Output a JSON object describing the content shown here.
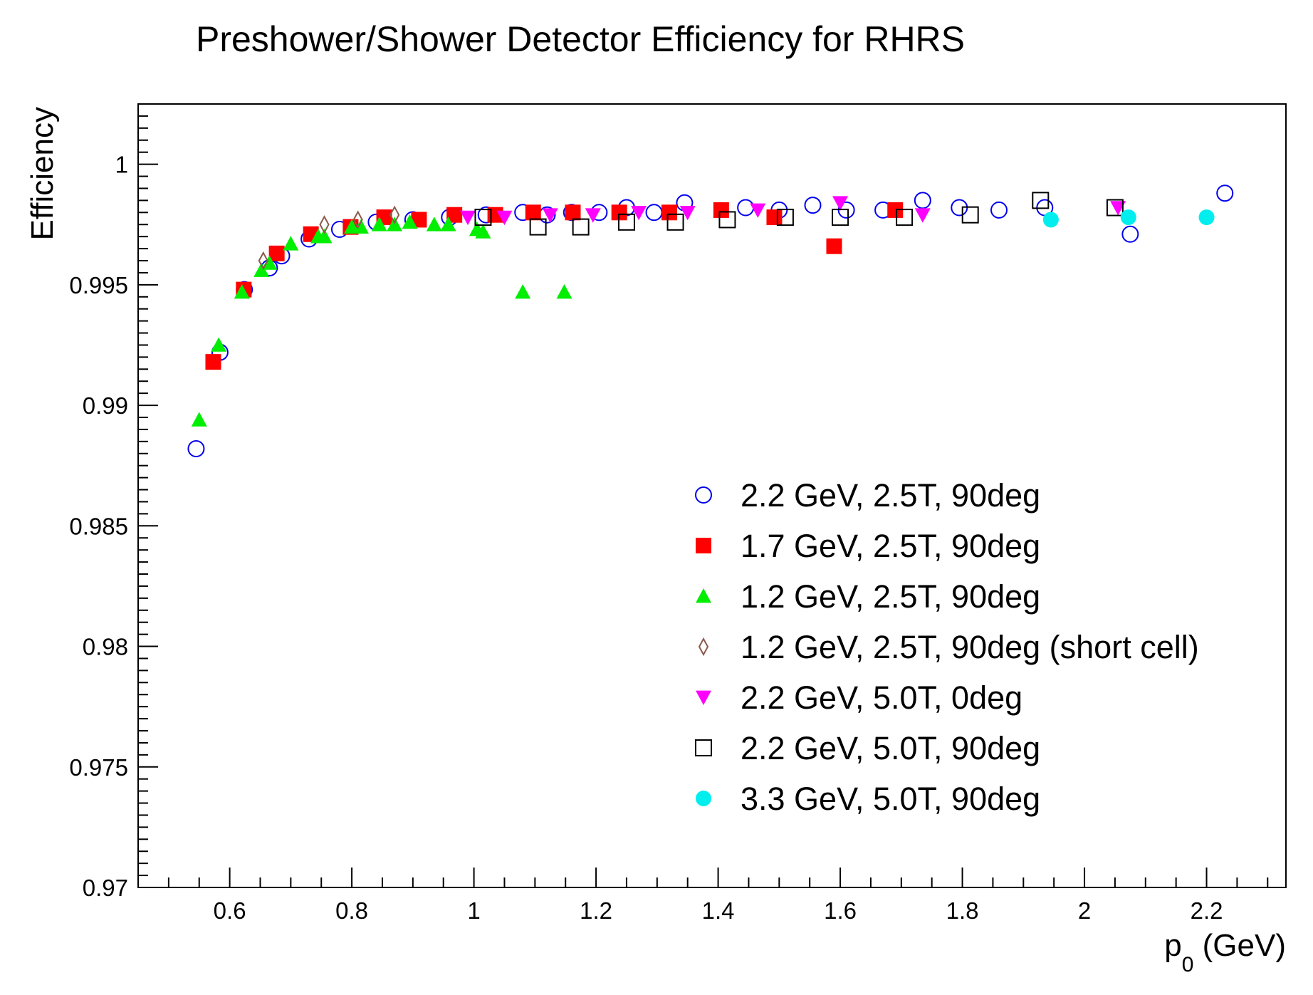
{
  "chart_data": {
    "type": "scatter",
    "title": "Preshower/Shower Detector Efficiency for RHRS",
    "xlabel": {
      "main": "p",
      "sub": "0",
      "unit": " (GeV)"
    },
    "ylabel": "Efficiency",
    "xlim": [
      0.45,
      2.33
    ],
    "ylim": [
      0.97,
      1.0025
    ],
    "x_ticks": [
      {
        "v": 0.6,
        "label": "0.6"
      },
      {
        "v": 0.8,
        "label": "0.8"
      },
      {
        "v": 1.0,
        "label": "1"
      },
      {
        "v": 1.2,
        "label": "1.2"
      },
      {
        "v": 1.4,
        "label": "1.4"
      },
      {
        "v": 1.6,
        "label": "1.6"
      },
      {
        "v": 1.8,
        "label": "1.8"
      },
      {
        "v": 2.0,
        "label": "2"
      },
      {
        "v": 2.2,
        "label": "2.2"
      }
    ],
    "y_ticks": [
      {
        "v": 0.97,
        "label": "0.97"
      },
      {
        "v": 0.975,
        "label": "0.975"
      },
      {
        "v": 0.98,
        "label": "0.98"
      },
      {
        "v": 0.985,
        "label": "0.985"
      },
      {
        "v": 0.99,
        "label": "0.99"
      },
      {
        "v": 0.995,
        "label": "0.995"
      },
      {
        "v": 1.0,
        "label": "1"
      }
    ],
    "legend_position": "bottom-right",
    "series": [
      {
        "name": "2.2 GeV, 2.5T, 90deg",
        "marker": "open-circle",
        "color": "#0000ee",
        "points": [
          [
            0.545,
            0.9882
          ],
          [
            0.584,
            0.9922
          ],
          [
            0.624,
            0.9948
          ],
          [
            0.665,
            0.9957
          ],
          [
            0.685,
            0.9962
          ],
          [
            0.73,
            0.9969
          ],
          [
            0.78,
            0.9973
          ],
          [
            0.84,
            0.9976
          ],
          [
            0.9,
            0.9977
          ],
          [
            0.96,
            0.9978
          ],
          [
            1.02,
            0.9979
          ],
          [
            1.08,
            0.998
          ],
          [
            1.12,
            0.9979
          ],
          [
            1.16,
            0.998
          ],
          [
            1.205,
            0.998
          ],
          [
            1.25,
            0.9982
          ],
          [
            1.295,
            0.998
          ],
          [
            1.345,
            0.9984
          ],
          [
            1.445,
            0.9982
          ],
          [
            1.5,
            0.9981
          ],
          [
            1.555,
            0.9983
          ],
          [
            1.61,
            0.9981
          ],
          [
            1.67,
            0.9981
          ],
          [
            1.735,
            0.9985
          ],
          [
            1.795,
            0.9982
          ],
          [
            1.86,
            0.9981
          ],
          [
            1.935,
            0.9982
          ],
          [
            2.075,
            0.9971
          ],
          [
            2.23,
            0.9988
          ]
        ]
      },
      {
        "name": "1.7 GeV, 2.5T, 90deg",
        "marker": "filled-square",
        "color": "#ff0000",
        "points": [
          [
            0.573,
            0.9918
          ],
          [
            0.623,
            0.9948
          ],
          [
            0.677,
            0.9963
          ],
          [
            0.733,
            0.9971
          ],
          [
            0.798,
            0.9974
          ],
          [
            0.853,
            0.9978
          ],
          [
            0.91,
            0.9977
          ],
          [
            0.968,
            0.9979
          ],
          [
            1.035,
            0.9979
          ],
          [
            1.097,
            0.998
          ],
          [
            1.162,
            0.998
          ],
          [
            1.238,
            0.998
          ],
          [
            1.32,
            0.998
          ],
          [
            1.405,
            0.9981
          ],
          [
            1.492,
            0.9978
          ],
          [
            1.59,
            0.9966
          ],
          [
            1.69,
            0.9981
          ]
        ]
      },
      {
        "name": "1.2 GeV, 2.5T, 90deg",
        "marker": "filled-triangle-up",
        "color": "#00ee00",
        "points": [
          [
            0.55,
            0.9894
          ],
          [
            0.582,
            0.9925
          ],
          [
            0.62,
            0.9947
          ],
          [
            0.652,
            0.9956
          ],
          [
            0.665,
            0.9959
          ],
          [
            0.7,
            0.9967
          ],
          [
            0.745,
            0.997
          ],
          [
            0.755,
            0.997
          ],
          [
            0.8,
            0.9974
          ],
          [
            0.815,
            0.9974
          ],
          [
            0.845,
            0.9975
          ],
          [
            0.87,
            0.9975
          ],
          [
            0.895,
            0.9976
          ],
          [
            0.935,
            0.9975
          ],
          [
            0.958,
            0.9975
          ],
          [
            1.005,
            0.9973
          ],
          [
            1.015,
            0.9972
          ],
          [
            1.08,
            0.9947
          ],
          [
            1.148,
            0.9947
          ]
        ]
      },
      {
        "name": "1.2 GeV, 2.5T, 90deg (short cell)",
        "marker": "open-diamond",
        "color": "#8b5a4a",
        "points": [
          [
            0.655,
            0.996
          ],
          [
            0.755,
            0.9975
          ],
          [
            0.81,
            0.9977
          ],
          [
            0.87,
            0.9979
          ]
        ]
      },
      {
        "name": "2.2 GeV, 5.0T, 0deg",
        "marker": "filled-triangle-down",
        "color": "#ff00ff",
        "points": [
          [
            0.99,
            0.9978
          ],
          [
            1.05,
            0.9978
          ],
          [
            1.125,
            0.9979
          ],
          [
            1.195,
            0.9979
          ],
          [
            1.27,
            0.998
          ],
          [
            1.35,
            0.998
          ],
          [
            1.465,
            0.9981
          ],
          [
            1.6,
            0.9984
          ],
          [
            1.735,
            0.9979
          ],
          [
            2.055,
            0.9982
          ]
        ]
      },
      {
        "name": "2.2 GeV, 5.0T, 90deg",
        "marker": "open-square",
        "color": "#000000",
        "points": [
          [
            1.015,
            0.9978
          ],
          [
            1.105,
            0.9974
          ],
          [
            1.175,
            0.9974
          ],
          [
            1.25,
            0.9976
          ],
          [
            1.33,
            0.9976
          ],
          [
            1.415,
            0.9977
          ],
          [
            1.51,
            0.9978
          ],
          [
            1.6,
            0.9978
          ],
          [
            1.705,
            0.9978
          ],
          [
            1.813,
            0.9979
          ],
          [
            1.928,
            0.9985
          ],
          [
            2.05,
            0.9982
          ]
        ]
      },
      {
        "name": "3.3 GeV, 5.0T, 90deg",
        "marker": "filled-circle",
        "color": "#00eeee",
        "points": [
          [
            1.945,
            0.9977
          ],
          [
            2.072,
            0.9978
          ],
          [
            2.2,
            0.9978
          ]
        ]
      }
    ]
  }
}
